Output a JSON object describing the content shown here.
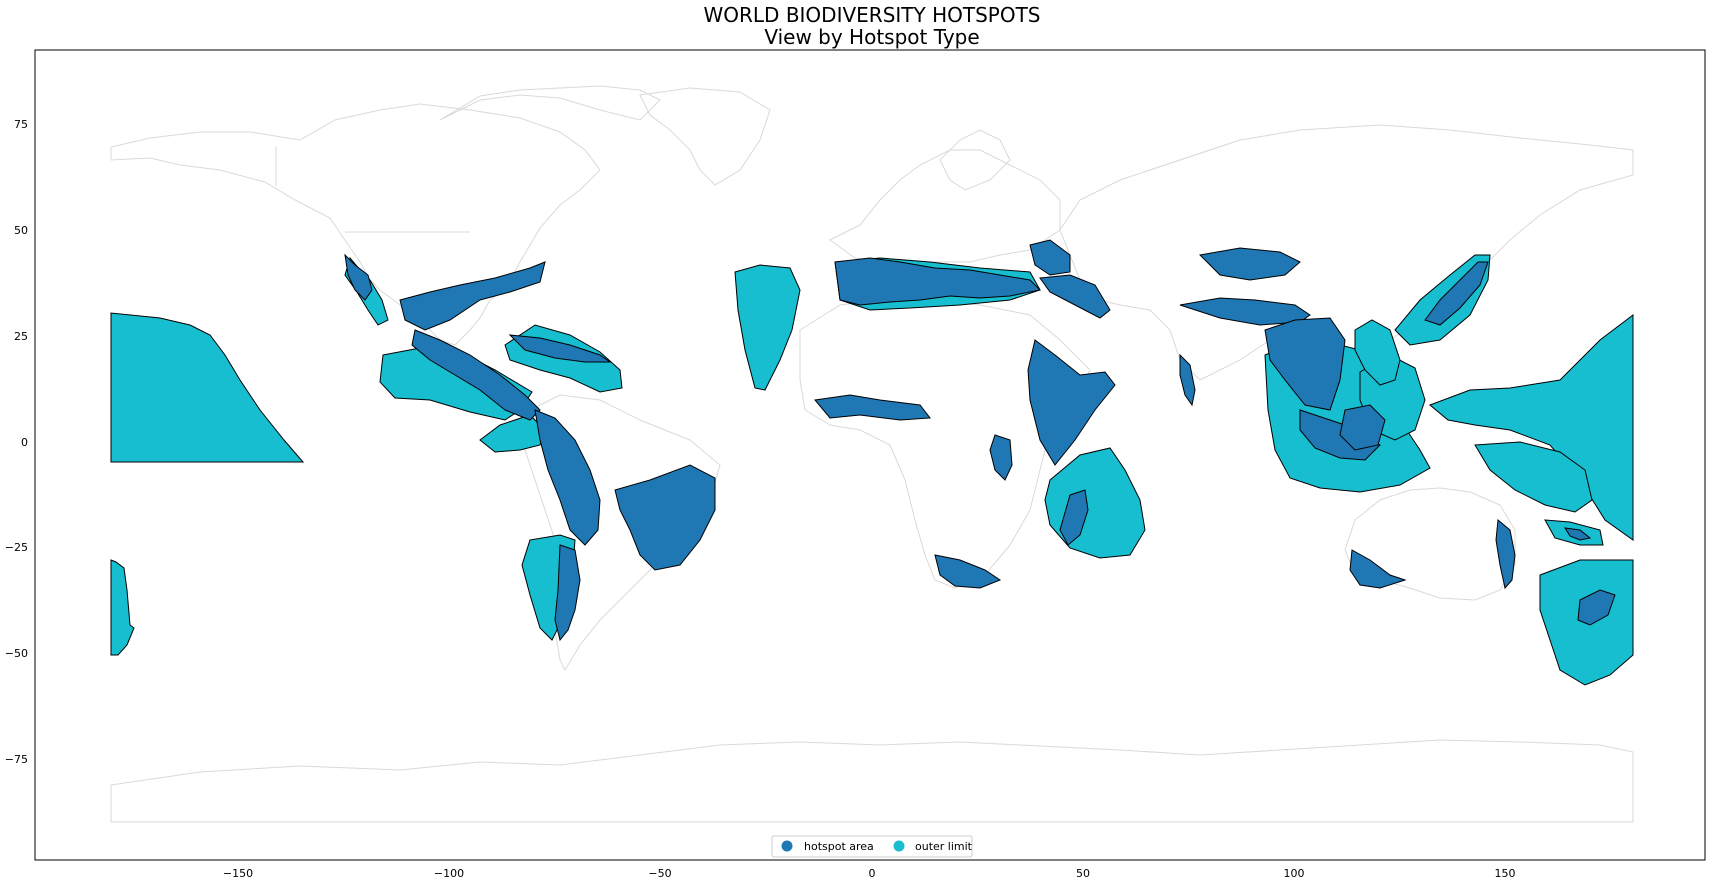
{
  "title_lines": [
    "WORLD BIODIVERSITY HOTSPOTS",
    "View by Hotspot Type"
  ],
  "chart_data": {
    "type": "map",
    "title": "WORLD BIODIVERSITY HOTSPOTS\nView by Hotspot Type",
    "xlim": [
      -198,
      198
    ],
    "ylim": [
      -99,
      92
    ],
    "x_ticks": [
      -150,
      -100,
      -50,
      0,
      50,
      100,
      150
    ],
    "y_ticks": [
      75,
      50,
      25,
      0,
      -25,
      -50,
      -75
    ],
    "x_tick_labels": [
      "−150",
      "−100",
      "−50",
      "0",
      "50",
      "100",
      "150"
    ],
    "y_tick_labels": [
      "75",
      "50",
      "25",
      "0",
      "−25",
      "−50",
      "−75"
    ],
    "legend": {
      "placement": "bottom-center",
      "entries": [
        {
          "label": "hotspot area",
          "color": "#1f77b4"
        },
        {
          "label": "outer limit",
          "color": "#17becf"
        }
      ]
    },
    "colors": {
      "hotspot_area": "#1f77b4",
      "outer_limit": "#17becf",
      "basemap_outline": "#d9d9d9"
    },
    "grid": false
  }
}
